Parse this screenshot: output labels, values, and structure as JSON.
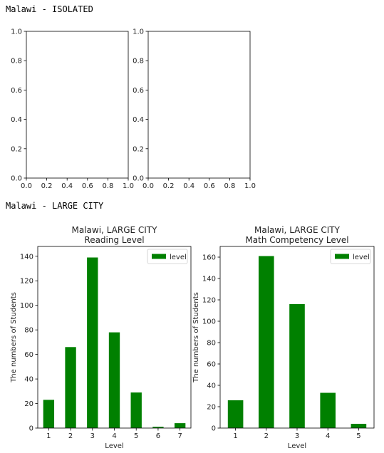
{
  "outputs": [
    "Malawi - ISOLATED",
    "Malawi - LARGE CITY"
  ],
  "colors": {
    "bar": "#008000",
    "axis": "#000000",
    "text": "#222222"
  },
  "chart_data": [
    {
      "type": "empty",
      "xlim": [
        0.0,
        1.0
      ],
      "ylim": [
        0.0,
        1.0
      ],
      "x_ticks": [
        "0.0",
        "0.2",
        "0.4",
        "0.6",
        "0.8",
        "1.0"
      ],
      "y_ticks": [
        "0.0",
        "0.2",
        "0.4",
        "0.6",
        "0.8",
        "1.0"
      ]
    },
    {
      "type": "empty",
      "xlim": [
        0.0,
        1.0
      ],
      "ylim": [
        0.0,
        1.0
      ],
      "x_ticks": [
        "0.0",
        "0.2",
        "0.4",
        "0.6",
        "0.8",
        "1.0"
      ],
      "y_ticks": [
        "0.0",
        "0.2",
        "0.4",
        "0.6",
        "0.8",
        "1.0"
      ]
    },
    {
      "type": "bar",
      "title": [
        "Malawi, LARGE CITY",
        "Reading Level"
      ],
      "xlabel": "Level",
      "ylabel": "The numbers of Students",
      "categories": [
        "1",
        "2",
        "3",
        "4",
        "5",
        "6",
        "7"
      ],
      "series": [
        {
          "name": "level",
          "values": [
            23,
            66,
            139,
            78,
            29,
            1,
            4
          ]
        }
      ],
      "ylim": [
        0,
        148
      ],
      "y_ticks": [
        0,
        20,
        40,
        60,
        80,
        100,
        120,
        140
      ],
      "legend": "top-right",
      "grid": false
    },
    {
      "type": "bar",
      "title": [
        "Malawi, LARGE CITY",
        "Math Competency Level"
      ],
      "xlabel": "Level",
      "ylabel": "The numbers of Students",
      "categories": [
        "1",
        "2",
        "3",
        "4",
        "5"
      ],
      "series": [
        {
          "name": "level",
          "values": [
            26,
            161,
            116,
            33,
            4
          ]
        }
      ],
      "ylim": [
        0,
        170
      ],
      "y_ticks": [
        0,
        20,
        40,
        60,
        80,
        100,
        120,
        140,
        160
      ],
      "legend": "top-right",
      "grid": false
    }
  ]
}
